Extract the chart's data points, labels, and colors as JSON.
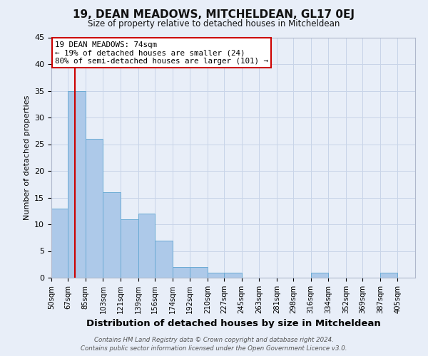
{
  "title": "19, DEAN MEADOWS, MITCHELDEAN, GL17 0EJ",
  "subtitle": "Size of property relative to detached houses in Mitcheldean",
  "xlabel": "Distribution of detached houses by size in Mitcheldean",
  "ylabel": "Number of detached properties",
  "bin_labels": [
    "50sqm",
    "67sqm",
    "85sqm",
    "103sqm",
    "121sqm",
    "139sqm",
    "156sqm",
    "174sqm",
    "192sqm",
    "210sqm",
    "227sqm",
    "245sqm",
    "263sqm",
    "281sqm",
    "298sqm",
    "316sqm",
    "334sqm",
    "352sqm",
    "369sqm",
    "387sqm",
    "405sqm"
  ],
  "bar_values": [
    13,
    35,
    26,
    16,
    11,
    12,
    7,
    2,
    2,
    1,
    1,
    0,
    0,
    0,
    0,
    1,
    0,
    0,
    0,
    1,
    0
  ],
  "bar_color": "#adc9e9",
  "bar_edge_color": "#6aaad4",
  "property_line_x": 74,
  "bin_edges_start": [
    50,
    67,
    85,
    103,
    121,
    139,
    156,
    174,
    192,
    210,
    227,
    245,
    263,
    281,
    298,
    316,
    334,
    352,
    369,
    387,
    405
  ],
  "bin_width": 18,
  "ylim": [
    0,
    45
  ],
  "yticks": [
    0,
    5,
    10,
    15,
    20,
    25,
    30,
    35,
    40,
    45
  ],
  "annotation_title": "19 DEAN MEADOWS: 74sqm",
  "annotation_line1": "← 19% of detached houses are smaller (24)",
  "annotation_line2": "80% of semi-detached houses are larger (101) →",
  "annotation_box_facecolor": "#ffffff",
  "annotation_box_edgecolor": "#cc0000",
  "red_line_color": "#cc0000",
  "grid_color": "#c8d4e8",
  "background_color": "#e8eef8",
  "footer_line1": "Contains HM Land Registry data © Crown copyright and database right 2024.",
  "footer_line2": "Contains public sector information licensed under the Open Government Licence v3.0."
}
